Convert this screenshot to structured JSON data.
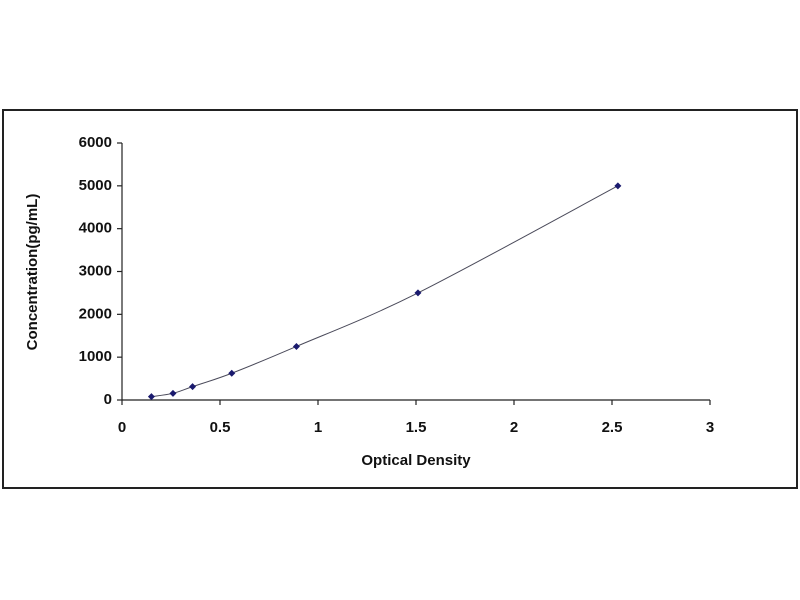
{
  "chart_data": {
    "type": "scatter",
    "line": true,
    "x_label": "Optical Density",
    "y_label": "Concentration(pg/mL)",
    "x": [
      0.15,
      0.26,
      0.36,
      0.56,
      0.89,
      1.51,
      2.53
    ],
    "values": [
      78,
      156,
      312,
      625,
      1250,
      2500,
      5000
    ],
    "color": "#1a1a6e",
    "line_color": "#4a4a5a",
    "xlim": [
      0,
      3
    ],
    "xticks": [
      0,
      0.5,
      1,
      1.5,
      2,
      2.5,
      3
    ],
    "ylim": [
      0,
      6000
    ],
    "yticks": [
      0,
      1000,
      2000,
      3000,
      4000,
      5000,
      6000
    ],
    "grid": false
  }
}
